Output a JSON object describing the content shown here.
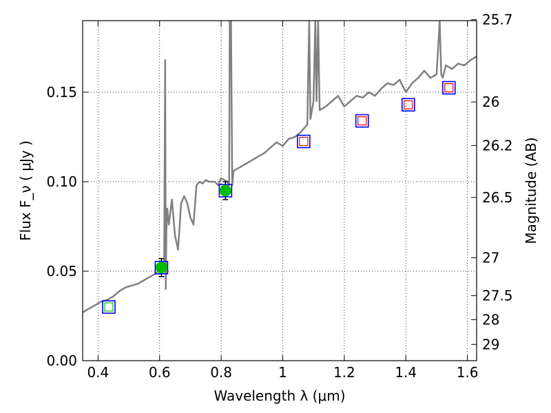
{
  "chart_data": {
    "type": "line",
    "xlabel": "Wavelength  λ (μm)",
    "ylabel": "Flux  F_ν  ( μJy )",
    "y2label": "Magnitude (AB)",
    "xlim": [
      0.35,
      1.63
    ],
    "ylim": [
      0.0,
      0.19
    ],
    "grid": true,
    "x_ticks": [
      0.4,
      0.6,
      0.8,
      1.0,
      1.2,
      1.4,
      1.6
    ],
    "x_tick_labels": [
      "0.4",
      "0.6",
      "0.8",
      "1",
      "1.2",
      "1.4",
      "1.6"
    ],
    "y_ticks": [
      0.0,
      0.05,
      0.1,
      0.15
    ],
    "y_tick_labels": [
      "0.00",
      "0.05",
      "0.10",
      "0.15"
    ],
    "y2_ticks": [
      25.7,
      26,
      26.2,
      26.5,
      27,
      27.5,
      28,
      29
    ],
    "y2_tick_labels": [
      "25.7",
      "26",
      "26.2",
      "26.5",
      "27",
      "27.5",
      "28",
      "29"
    ],
    "colors": {
      "spectrum": "#808080",
      "model_box_outer": "#0000ff",
      "detection_marker": "#00bb00",
      "upper_limit_marker": "#ff0000",
      "error_bar": "#000000"
    },
    "spectrum": {
      "x": [
        0.35,
        0.37,
        0.39,
        0.41,
        0.43,
        0.45,
        0.47,
        0.49,
        0.51,
        0.53,
        0.55,
        0.57,
        0.59,
        0.605,
        0.612,
        0.615,
        0.618,
        0.62,
        0.622,
        0.625,
        0.63,
        0.64,
        0.65,
        0.66,
        0.67,
        0.68,
        0.69,
        0.7,
        0.71,
        0.72,
        0.73,
        0.74,
        0.75,
        0.76,
        0.77,
        0.78,
        0.79,
        0.8,
        0.81,
        0.82,
        0.826,
        0.828,
        0.832,
        0.836,
        0.84,
        0.86,
        0.88,
        0.9,
        0.92,
        0.94,
        0.96,
        0.98,
        1.0,
        1.02,
        1.04,
        1.06,
        1.07,
        1.08,
        1.086,
        1.09,
        1.095,
        1.1,
        1.106,
        1.11,
        1.115,
        1.12,
        1.14,
        1.16,
        1.18,
        1.2,
        1.22,
        1.24,
        1.26,
        1.28,
        1.3,
        1.32,
        1.34,
        1.36,
        1.38,
        1.4,
        1.42,
        1.44,
        1.46,
        1.48,
        1.5,
        1.51,
        1.515,
        1.52,
        1.53,
        1.55,
        1.57,
        1.59,
        1.61,
        1.63
      ],
      "y": [
        0.027,
        0.029,
        0.031,
        0.033,
        0.034,
        0.036,
        0.039,
        0.041,
        0.042,
        0.043,
        0.045,
        0.047,
        0.049,
        0.052,
        0.055,
        0.056,
        0.168,
        0.04,
        0.073,
        0.085,
        0.076,
        0.09,
        0.07,
        0.062,
        0.088,
        0.092,
        0.088,
        0.08,
        0.076,
        0.098,
        0.1,
        0.099,
        0.101,
        0.1,
        0.1,
        0.1,
        0.098,
        0.102,
        0.101,
        0.1,
        0.098,
        0.19,
        0.19,
        0.098,
        0.106,
        0.108,
        0.11,
        0.112,
        0.114,
        0.116,
        0.119,
        0.122,
        0.12,
        0.124,
        0.125,
        0.128,
        0.13,
        0.132,
        0.19,
        0.135,
        0.14,
        0.145,
        0.19,
        0.145,
        0.19,
        0.14,
        0.142,
        0.145,
        0.148,
        0.142,
        0.145,
        0.148,
        0.147,
        0.15,
        0.148,
        0.152,
        0.155,
        0.154,
        0.157,
        0.15,
        0.155,
        0.158,
        0.162,
        0.158,
        0.16,
        0.19,
        0.16,
        0.158,
        0.165,
        0.163,
        0.166,
        0.165,
        0.168,
        0.17
      ]
    },
    "photometry": [
      {
        "x": 0.435,
        "y": 0.03,
        "kind": "model_only"
      },
      {
        "x": 0.606,
        "y": 0.052,
        "kind": "detection",
        "yerr": 0.005
      },
      {
        "x": 0.814,
        "y": 0.095,
        "kind": "detection",
        "yerr": 0.005
      },
      {
        "x": 1.068,
        "y": 0.1225,
        "kind": "upper_limit"
      },
      {
        "x": 1.258,
        "y": 0.134,
        "kind": "upper_limit"
      },
      {
        "x": 1.408,
        "y": 0.143,
        "kind": "upper_limit"
      },
      {
        "x": 1.54,
        "y": 0.1525,
        "kind": "upper_limit"
      }
    ]
  }
}
